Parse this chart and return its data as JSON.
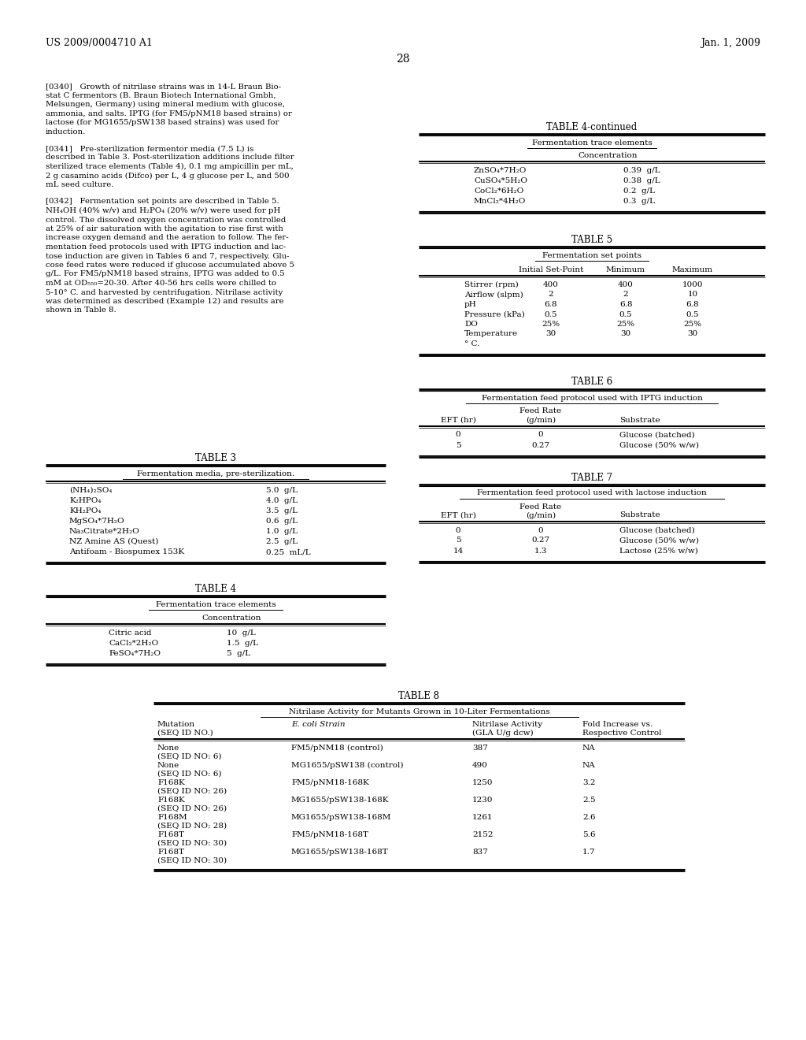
{
  "page_header_left": "US 2009/0004710 A1",
  "page_header_right": "Jan. 1, 2009",
  "page_number": "28",
  "background_color": "#ffffff",
  "table4_continued": {
    "title": "TABLE 4-continued",
    "subtitle": "Fermentation trace elements",
    "col_header": "Concentration",
    "rows": [
      [
        "ZnSO₄*7H₂O",
        "0.39  g/L"
      ],
      [
        "CuSO₄*5H₂O",
        "0.38  g/L"
      ],
      [
        "CoCl₂*6H₂O",
        "0.2  g/L"
      ],
      [
        "MnCl₂*4H₂O",
        "0.3  g/L"
      ]
    ]
  },
  "table5": {
    "title": "TABLE 5",
    "subtitle": "Fermentation set points",
    "rows": [
      [
        "Stirrer (rpm)",
        "400",
        "400",
        "1000"
      ],
      [
        "Airflow (slpm)",
        "2",
        "2",
        "10"
      ],
      [
        "pH",
        "6.8",
        "6.8",
        "6.8"
      ],
      [
        "Pressure (kPa)",
        "0.5",
        "0.5",
        "0.5"
      ],
      [
        "DO",
        "25%",
        "25%",
        "25%"
      ],
      [
        "Temperature",
        "30",
        "30",
        "30"
      ],
      [
        "° C.",
        "",
        "",
        ""
      ]
    ]
  },
  "table3": {
    "title": "TABLE 3",
    "subtitle": "Fermentation media, pre-sterilization.",
    "rows": [
      [
        "(NH₄)₂SO₄",
        "5.0  g/L"
      ],
      [
        "K₂HPO₄",
        "4.0  g/L"
      ],
      [
        "KH₂PO₄",
        "3.5  g/L"
      ],
      [
        "MgSO₄*7H₂O",
        "0.6  g/L"
      ],
      [
        "Na₃Citrate*2H₂O",
        "1.0  g/L"
      ],
      [
        "NZ Amine AS (Quest)",
        "2.5  g/L"
      ],
      [
        "Antifoam - Biospumex 153K",
        "0.25  mL/L"
      ]
    ]
  },
  "table4": {
    "title": "TABLE 4",
    "subtitle": "Fermentation trace elements",
    "col_header": "Concentration",
    "rows": [
      [
        "Citric acid",
        "10  g/L"
      ],
      [
        "CaCl₂*2H₂O",
        "1.5  g/L"
      ],
      [
        "FeSO₄*7H₂O",
        "5  g/L"
      ]
    ]
  },
  "table6": {
    "title": "TABLE 6",
    "subtitle": "Fermentation feed protocol used with IPTG induction",
    "rows": [
      [
        "0",
        "0",
        "Glucose (batched)"
      ],
      [
        "5",
        "0.27",
        "Glucose (50% w/w)"
      ]
    ]
  },
  "table7": {
    "title": "TABLE 7",
    "subtitle": "Fermentation feed protocol used with lactose induction",
    "rows": [
      [
        "0",
        "0",
        "Glucose (batched)"
      ],
      [
        "5",
        "0.27",
        "Glucose (50% w/w)"
      ],
      [
        "14",
        "1.3",
        "Lactose (25% w/w)"
      ]
    ]
  },
  "table8": {
    "title": "TABLE 8",
    "subtitle": "Nitrilase Activity for Mutants Grown in 10-Liter Fermentations",
    "rows": [
      [
        "None",
        "(SEQ ID NO: 6)",
        "FM5/pNM18 (control)",
        "387",
        "NA"
      ],
      [
        "None",
        "(SEQ ID NO: 6)",
        "MG1655/pSW138 (control)",
        "490",
        "NA"
      ],
      [
        "F168K",
        "(SEQ ID NO: 26)",
        "FM5/pNM18-168K",
        "1250",
        "3.2"
      ],
      [
        "F168K",
        "(SEQ ID NO: 26)",
        "MG1655/pSW138-168K",
        "1230",
        "2.5"
      ],
      [
        "F168M",
        "(SEQ ID NO: 28)",
        "MG1655/pSW138-168M",
        "1261",
        "2.6"
      ],
      [
        "F168T",
        "(SEQ ID NO: 30)",
        "FM5/pNM18-168T",
        "2152",
        "5.6"
      ],
      [
        "F168T",
        "(SEQ ID NO: 30)",
        "MG1655/pSW138-168T",
        "837",
        "1.7"
      ]
    ]
  },
  "body_paragraphs": [
    {
      "tag": "[0340]",
      "lines": [
        "Growth of nitrilase strains was in 14-L Braun Bio-",
        "stat C fermentors (B. Braun Biotech International Gmbh,",
        "Melsungen, Germany) using mineral medium with glucose,",
        "ammonia, and salts. IPTG (for FM5/pNM18 based strains) or",
        "lactose (for MG1655/pSW138 based strains) was used for",
        "induction."
      ]
    },
    {
      "tag": "[0341]",
      "lines": [
        "Pre-sterilization fermentor media (7.5 L) is",
        "described in Table 3. Post-sterilization additions include filter",
        "sterilized trace elements (Table 4), 0.1 mg ampicillin per mL,",
        "2 g casamino acids (Difco) per L, 4 g glucose per L, and 500",
        "mL seed culture."
      ]
    },
    {
      "tag": "[0342]",
      "lines": [
        "Fermentation set points are described in Table 5.",
        "NH₄OH (40% w/v) and H₂PO₄ (20% w/v) were used for pH",
        "control. The dissolved oxygen concentration was controlled",
        "at 25% of air saturation with the agitation to rise first with",
        "increase oxygen demand and the aeration to follow. The fer-",
        "mentation feed protocols used with IPTG induction and lac-",
        "tose induction are given in Tables 6 and 7, respectively. Glu-",
        "cose feed rates were reduced if glucose accumulated above 5",
        "g/L. For FM5/pNM18 based strains, IPTG was added to 0.5",
        "mM at OD₅₅₀=20-30. After 40-56 hrs cells were chilled to",
        "5-10° C. and harvested by centrifugation. Nitrilase activity",
        "was determined as described (Example 12) and results are",
        "shown in Table 8."
      ]
    }
  ]
}
